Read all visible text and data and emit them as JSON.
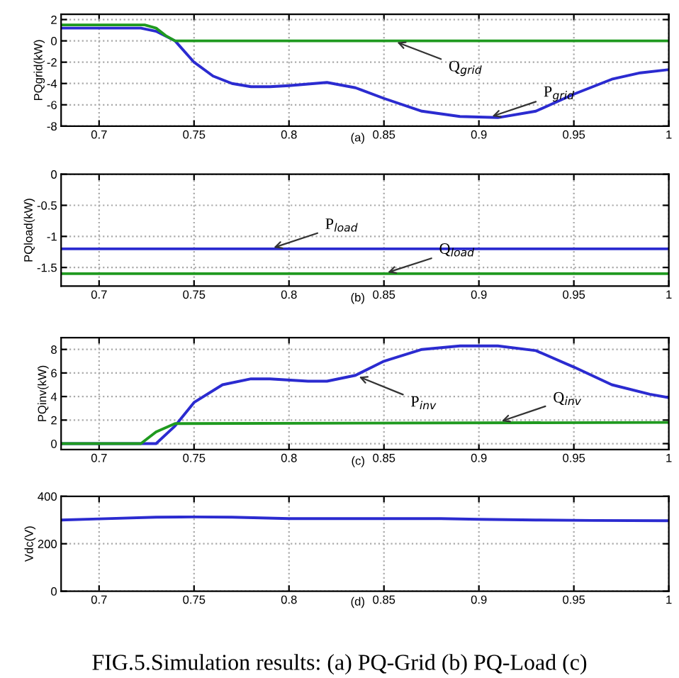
{
  "chart_data": [
    {
      "type": "line",
      "ylabel": "PQgrid(kW)",
      "xlim": [
        0.68,
        1
      ],
      "xticks": [
        0.7,
        0.75,
        0.8,
        0.85,
        0.9,
        0.95,
        1
      ],
      "ylim": [
        -8,
        2.5
      ],
      "yticks": [
        -8,
        -6,
        -4,
        -2,
        0,
        2
      ],
      "grid": true,
      "line_style": "solid",
      "annotations": [
        "(a)",
        {
          "text": "Q$_{grid}$",
          "x": 0.855,
          "y": 0
        },
        {
          "text": "P$_{grid}$",
          "x": 0.905,
          "y": -7.2
        }
      ],
      "series": [
        {
          "color": "#2b2bd0",
          "x": [
            0.68,
            0.722,
            0.73,
            0.74,
            0.75,
            0.76,
            0.77,
            0.78,
            0.79,
            0.8,
            0.82,
            0.835,
            0.85,
            0.87,
            0.89,
            0.91,
            0.93,
            0.95,
            0.97,
            0.985,
            1.0
          ],
          "values": [
            1.2,
            1.2,
            0.9,
            0,
            -2,
            -3.3,
            -4,
            -4.3,
            -4.3,
            -4.2,
            -3.9,
            -4.4,
            -5.4,
            -6.6,
            -7.1,
            -7.2,
            -6.6,
            -5.0,
            -3.6,
            -3.0,
            -2.7
          ]
        },
        {
          "color": "#1f9a1f",
          "x": [
            0.68,
            0.724,
            0.73,
            0.735,
            0.74,
            1.0
          ],
          "values": [
            1.5,
            1.5,
            1.2,
            0.5,
            0,
            0
          ]
        }
      ]
    },
    {
      "type": "line",
      "ylabel": "PQload(kW)",
      "xlim": [
        0.68,
        1
      ],
      "xticks": [
        0.7,
        0.75,
        0.8,
        0.85,
        0.9,
        0.95,
        1
      ],
      "ylim": [
        -1.8,
        0
      ],
      "yticks": [
        -1.5,
        -1,
        -0.5,
        0
      ],
      "grid": true,
      "line_style": "solid",
      "annotations": [
        "(b)",
        {
          "text": "P$_{load}$",
          "x": 0.79,
          "y": -1.2
        },
        {
          "text": "Q$_{load}$",
          "x": 0.85,
          "y": -1.6
        }
      ],
      "series": [
        {
          "color": "#2b2bd0",
          "x": [
            0.68,
            1.0
          ],
          "values": [
            -1.2,
            -1.2
          ]
        },
        {
          "color": "#1f9a1f",
          "x": [
            0.68,
            1.0
          ],
          "values": [
            -1.6,
            -1.6
          ]
        }
      ]
    },
    {
      "type": "line",
      "ylabel": "PQinv(kW)",
      "xlim": [
        0.68,
        1
      ],
      "xticks": [
        0.7,
        0.75,
        0.8,
        0.85,
        0.9,
        0.95,
        1
      ],
      "ylim": [
        -0.5,
        9
      ],
      "yticks": [
        0,
        2,
        4,
        6,
        8
      ],
      "grid": true,
      "line_style": "solid",
      "annotations": [
        "(c)",
        {
          "text": "P$_{inv}$",
          "x": 0.835,
          "y": 5.8
        },
        {
          "text": "Q$_{inv}$",
          "x": 0.91,
          "y": 1.8
        }
      ],
      "series": [
        {
          "color": "#2b2bd0",
          "x": [
            0.68,
            0.722,
            0.73,
            0.74,
            0.75,
            0.765,
            0.78,
            0.79,
            0.81,
            0.82,
            0.835,
            0.85,
            0.87,
            0.89,
            0.91,
            0.93,
            0.95,
            0.97,
            0.99,
            1.0
          ],
          "values": [
            0,
            0,
            0,
            1.5,
            3.5,
            5.0,
            5.5,
            5.5,
            5.3,
            5.3,
            5.8,
            7.0,
            8.0,
            8.3,
            8.3,
            7.9,
            6.5,
            5.0,
            4.2,
            3.9
          ]
        },
        {
          "color": "#1f9a1f",
          "x": [
            0.68,
            0.722,
            0.73,
            0.74,
            1.0
          ],
          "values": [
            0,
            0,
            1.0,
            1.7,
            1.8
          ]
        }
      ]
    },
    {
      "type": "line",
      "ylabel": "Vdc(V)",
      "xlim": [
        0.68,
        1
      ],
      "xticks": [
        0.7,
        0.75,
        0.8,
        0.85,
        0.9,
        0.95,
        1
      ],
      "ylim": [
        0,
        400
      ],
      "yticks": [
        0,
        200,
        400
      ],
      "grid": true,
      "line_style": "solid",
      "annotations": [
        "(d)",
        "FIG.5.Simulation results: (a) PQ-Grid (b) PQ-Load (c)"
      ],
      "series": [
        {
          "color": "#2b2bd0",
          "x": [
            0.68,
            0.7,
            0.73,
            0.75,
            0.77,
            0.8,
            0.88,
            0.9,
            0.93,
            0.96,
            1.0
          ],
          "values": [
            300,
            305,
            312,
            313,
            312,
            306,
            306,
            303,
            300,
            298,
            297
          ]
        }
      ]
    }
  ]
}
